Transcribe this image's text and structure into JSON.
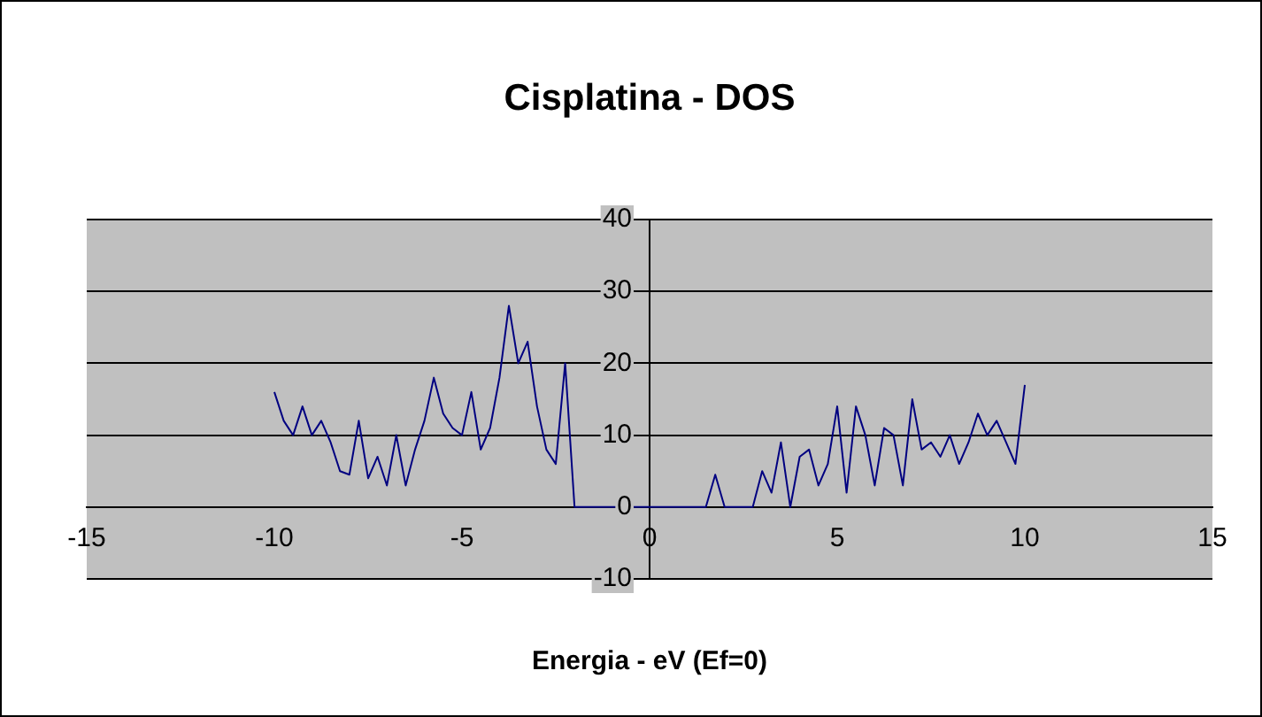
{
  "chart_data": {
    "type": "line",
    "title": "Cisplatina - DOS",
    "xlabel": "Energia - eV (Ef=0)",
    "x": [
      -10,
      -9.75,
      -9.5,
      -9.25,
      -9,
      -8.75,
      -8.5,
      -8.25,
      -8,
      -7.75,
      -7.5,
      -7.25,
      -7,
      -6.75,
      -6.5,
      -6.25,
      -6,
      -5.75,
      -5.5,
      -5.25,
      -5,
      -4.75,
      -4.5,
      -4.25,
      -4,
      -3.75,
      -3.5,
      -3.25,
      -3,
      -2.75,
      -2.5,
      -2.25,
      -2,
      -1.5,
      -1,
      -0.5,
      0,
      0.5,
      1,
      1.5,
      1.75,
      2,
      2.5,
      2.75,
      3,
      3.25,
      3.5,
      3.75,
      4,
      4.25,
      4.5,
      4.75,
      5,
      5.25,
      5.5,
      5.75,
      6,
      6.25,
      6.5,
      6.75,
      7,
      7.25,
      7.5,
      7.75,
      8,
      8.25,
      8.5,
      8.75,
      9,
      9.25,
      9.5,
      9.75,
      10
    ],
    "series": [
      {
        "color": "#000080",
        "values": [
          16,
          12,
          10,
          14,
          10,
          12,
          9,
          5,
          4.5,
          12,
          4,
          7,
          3,
          10,
          3,
          8,
          12,
          18,
          13,
          11,
          10,
          16,
          8,
          11,
          18,
          28,
          20,
          23,
          14,
          8,
          6,
          20,
          0,
          0,
          0,
          0,
          0,
          0,
          0,
          0,
          4.5,
          0,
          0,
          0,
          5,
          2,
          9,
          0,
          7,
          8,
          3,
          6,
          14,
          2,
          14,
          10,
          3,
          11,
          10,
          3,
          15,
          8,
          9,
          7,
          10,
          6,
          9,
          13,
          10,
          12,
          9,
          6,
          17
        ]
      }
    ],
    "xlim": [
      -15,
      15
    ],
    "xticks": [
      -15,
      -10,
      -5,
      0,
      5,
      10,
      15
    ],
    "ylim": [
      -10,
      40
    ],
    "yticks": [
      -10,
      0,
      10,
      20,
      30,
      40
    ],
    "grid": "y",
    "legend": false,
    "marker": "none",
    "line_style": "solid"
  }
}
